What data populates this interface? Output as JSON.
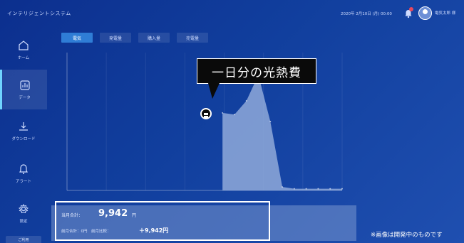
{
  "header": {
    "app_title": "インテリジェントシステム",
    "datetime": "2020年 2月10日 (月) 00:00",
    "username": "電気太郎 様"
  },
  "sidebar": {
    "items": [
      {
        "label": "ホーム",
        "icon": "home-icon"
      },
      {
        "label": "データ",
        "icon": "chart-icon"
      },
      {
        "label": "ダウンロード",
        "icon": "download-icon"
      },
      {
        "label": "アラート",
        "icon": "bell-icon"
      },
      {
        "label": "設定",
        "icon": "gear-icon"
      }
    ],
    "bottom_tab": "ご利用"
  },
  "tabs": [
    {
      "label": "電気"
    },
    {
      "label": "発電量"
    },
    {
      "label": "購入量"
    },
    {
      "label": "売電量"
    }
  ],
  "callout": {
    "text": "一日分の光熱費"
  },
  "summary": {
    "total_label": "当月合計：",
    "total_value": "9,942",
    "total_unit": "円",
    "detail_line": "前月合計：0円　前月比較：",
    "detail_highlight": "＋9,942円"
  },
  "disclaimer": "※画像は開発中のものです",
  "colors": {
    "background": "#113f9e",
    "accent": "#2f7dd6",
    "area_fill": "#8fa9d9"
  },
  "chart_data": {
    "type": "area",
    "x": [
      0,
      1,
      2,
      3,
      4,
      5,
      6,
      7,
      8,
      9,
      10,
      11,
      12,
      13,
      14,
      15,
      16,
      17,
      18,
      19,
      20,
      21,
      22,
      23
    ],
    "values": [
      null,
      null,
      null,
      null,
      null,
      null,
      null,
      null,
      null,
      null,
      null,
      null,
      null,
      45,
      44,
      52,
      67,
      40,
      2,
      1,
      1,
      1,
      1,
      1
    ],
    "ylim": [
      0,
      80
    ],
    "grid": true
  }
}
